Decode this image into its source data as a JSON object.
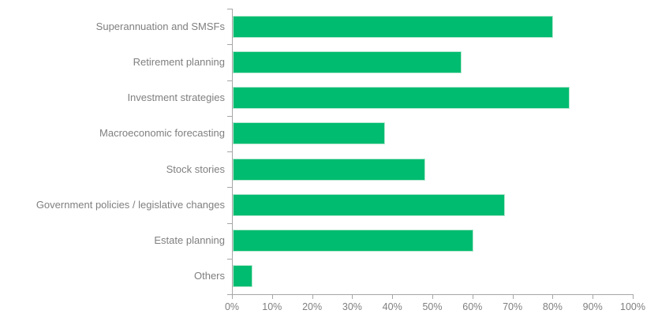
{
  "chart_data": {
    "type": "bar",
    "orientation": "horizontal",
    "title": "",
    "xlabel": "",
    "ylabel": "",
    "categories": [
      "Superannuation and SMSFs",
      "Retirement planning",
      "Investment strategies",
      "Macroeconomic forecasting",
      "Stock stories",
      "Government policies / legislative changes",
      "Estate planning",
      "Others"
    ],
    "values": [
      80,
      57,
      84,
      38,
      48,
      68,
      60,
      5
    ],
    "unit": "%",
    "xlim": [
      0,
      100
    ],
    "x_tick_labels": [
      "0%",
      "10%",
      "20%",
      "30%",
      "40%",
      "50%",
      "60%",
      "70%",
      "80%",
      "90%",
      "100%"
    ],
    "grid": false,
    "legend": false,
    "colors": {
      "bar_fill": "#00bc70",
      "bar_border": "#b5e7d0",
      "axis": "#a6a6a6",
      "text": "#7f7f7f"
    }
  }
}
